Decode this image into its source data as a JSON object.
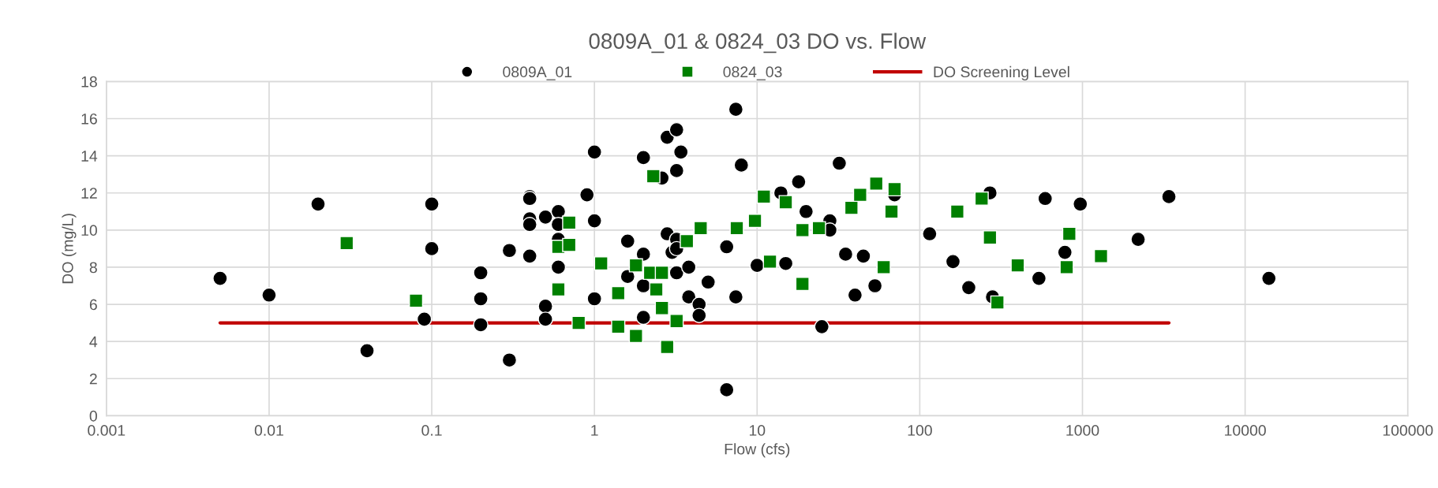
{
  "chart_data": {
    "type": "scatter",
    "title": "0809A_01 & 0824_03 DO vs. Flow",
    "xlabel": "Flow (cfs)",
    "ylabel": "DO (mg/L)",
    "log": "x",
    "grid": true,
    "legend": "top",
    "xlim": [
      0.001,
      100000
    ],
    "xticks": [
      {
        "value": 0.001,
        "label": "0.001"
      },
      {
        "value": 0.01,
        "label": "0.01"
      },
      {
        "value": 0.1,
        "label": "0.1"
      },
      1,
      10,
      100,
      1000,
      10000,
      100000
    ],
    "ylim": [
      0,
      18
    ],
    "yticks": [
      0,
      2,
      4,
      6,
      8,
      10,
      12,
      14,
      16,
      18
    ],
    "series": [
      {
        "name": "0809A_01",
        "color": "#000000",
        "marker": "circle",
        "x": [
          0.005,
          0.01,
          0.02,
          0.04,
          0.09,
          0.1,
          0.1,
          0.2,
          0.2,
          0.2,
          0.3,
          0.3,
          0.4,
          0.4,
          0.4,
          0.4,
          0.4,
          0.5,
          0.5,
          0.5,
          0.6,
          0.6,
          0.6,
          0.6,
          0.9,
          1.0,
          1.0,
          1.0,
          1.6,
          1.6,
          2.0,
          2.0,
          2.0,
          2.0,
          2.6,
          2.8,
          2.8,
          3.0,
          3.2,
          3.2,
          3.2,
          3.2,
          3.2,
          3.4,
          3.8,
          3.8,
          4.4,
          4.4,
          5.0,
          6.5,
          6.5,
          7.4,
          7.4,
          8.0,
          10,
          14,
          15,
          18,
          20,
          25,
          28,
          28,
          32,
          35,
          40,
          45,
          53,
          70,
          115,
          160,
          200,
          270,
          280,
          540,
          590,
          780,
          970,
          2200,
          3400,
          14000
        ],
        "values": [
          7.4,
          6.5,
          11.4,
          3.5,
          5.2,
          11.4,
          9.0,
          7.7,
          6.3,
          4.9,
          8.9,
          3.0,
          11.8,
          11.7,
          10.6,
          10.3,
          8.6,
          10.7,
          5.9,
          5.2,
          11.0,
          10.3,
          9.5,
          8.0,
          11.9,
          14.2,
          10.5,
          6.3,
          9.4,
          7.5,
          13.9,
          8.7,
          7.0,
          5.3,
          12.8,
          15.0,
          9.8,
          8.8,
          15.4,
          13.2,
          9.5,
          9.0,
          7.7,
          14.2,
          8.0,
          6.4,
          6.0,
          5.4,
          7.2,
          9.1,
          1.4,
          16.5,
          6.4,
          13.5,
          8.1,
          12.0,
          8.2,
          12.6,
          11.0,
          4.8,
          10.5,
          10.0,
          13.6,
          8.7,
          6.5,
          8.6,
          7.0,
          11.9,
          9.8,
          8.3,
          6.9,
          12.0,
          6.4,
          7.4,
          11.7,
          8.8,
          11.4,
          9.5,
          11.8,
          7.4
        ]
      },
      {
        "name": "0824_03",
        "color": "#008000",
        "marker": "square",
        "x": [
          0.03,
          0.08,
          0.6,
          0.6,
          0.7,
          0.7,
          0.8,
          1.1,
          1.4,
          1.4,
          1.8,
          1.8,
          2.2,
          2.3,
          2.4,
          2.6,
          2.6,
          2.8,
          3.2,
          3.7,
          4.5,
          7.5,
          9.7,
          11,
          12,
          15,
          19,
          19,
          24,
          38,
          43,
          54,
          60,
          67,
          70,
          170,
          240,
          270,
          300,
          400,
          800,
          830,
          1300
        ],
        "values": [
          9.3,
          6.2,
          9.1,
          6.8,
          10.4,
          9.2,
          5.0,
          8.2,
          6.6,
          4.8,
          8.1,
          4.3,
          7.7,
          12.9,
          6.8,
          7.7,
          5.8,
          3.7,
          5.1,
          9.4,
          10.1,
          10.1,
          10.5,
          11.8,
          8.3,
          11.5,
          10.0,
          7.1,
          10.1,
          11.2,
          11.9,
          12.5,
          8.0,
          11.0,
          12.2,
          11.0,
          11.7,
          9.6,
          6.1,
          8.1,
          8.0,
          9.8,
          8.6
        ]
      },
      {
        "name": "DO Screening Level",
        "type": "line",
        "color": "#c00000",
        "marker": "none",
        "line_style": "solid",
        "x": [
          0.005,
          3400
        ],
        "values": [
          5,
          5
        ]
      }
    ]
  }
}
